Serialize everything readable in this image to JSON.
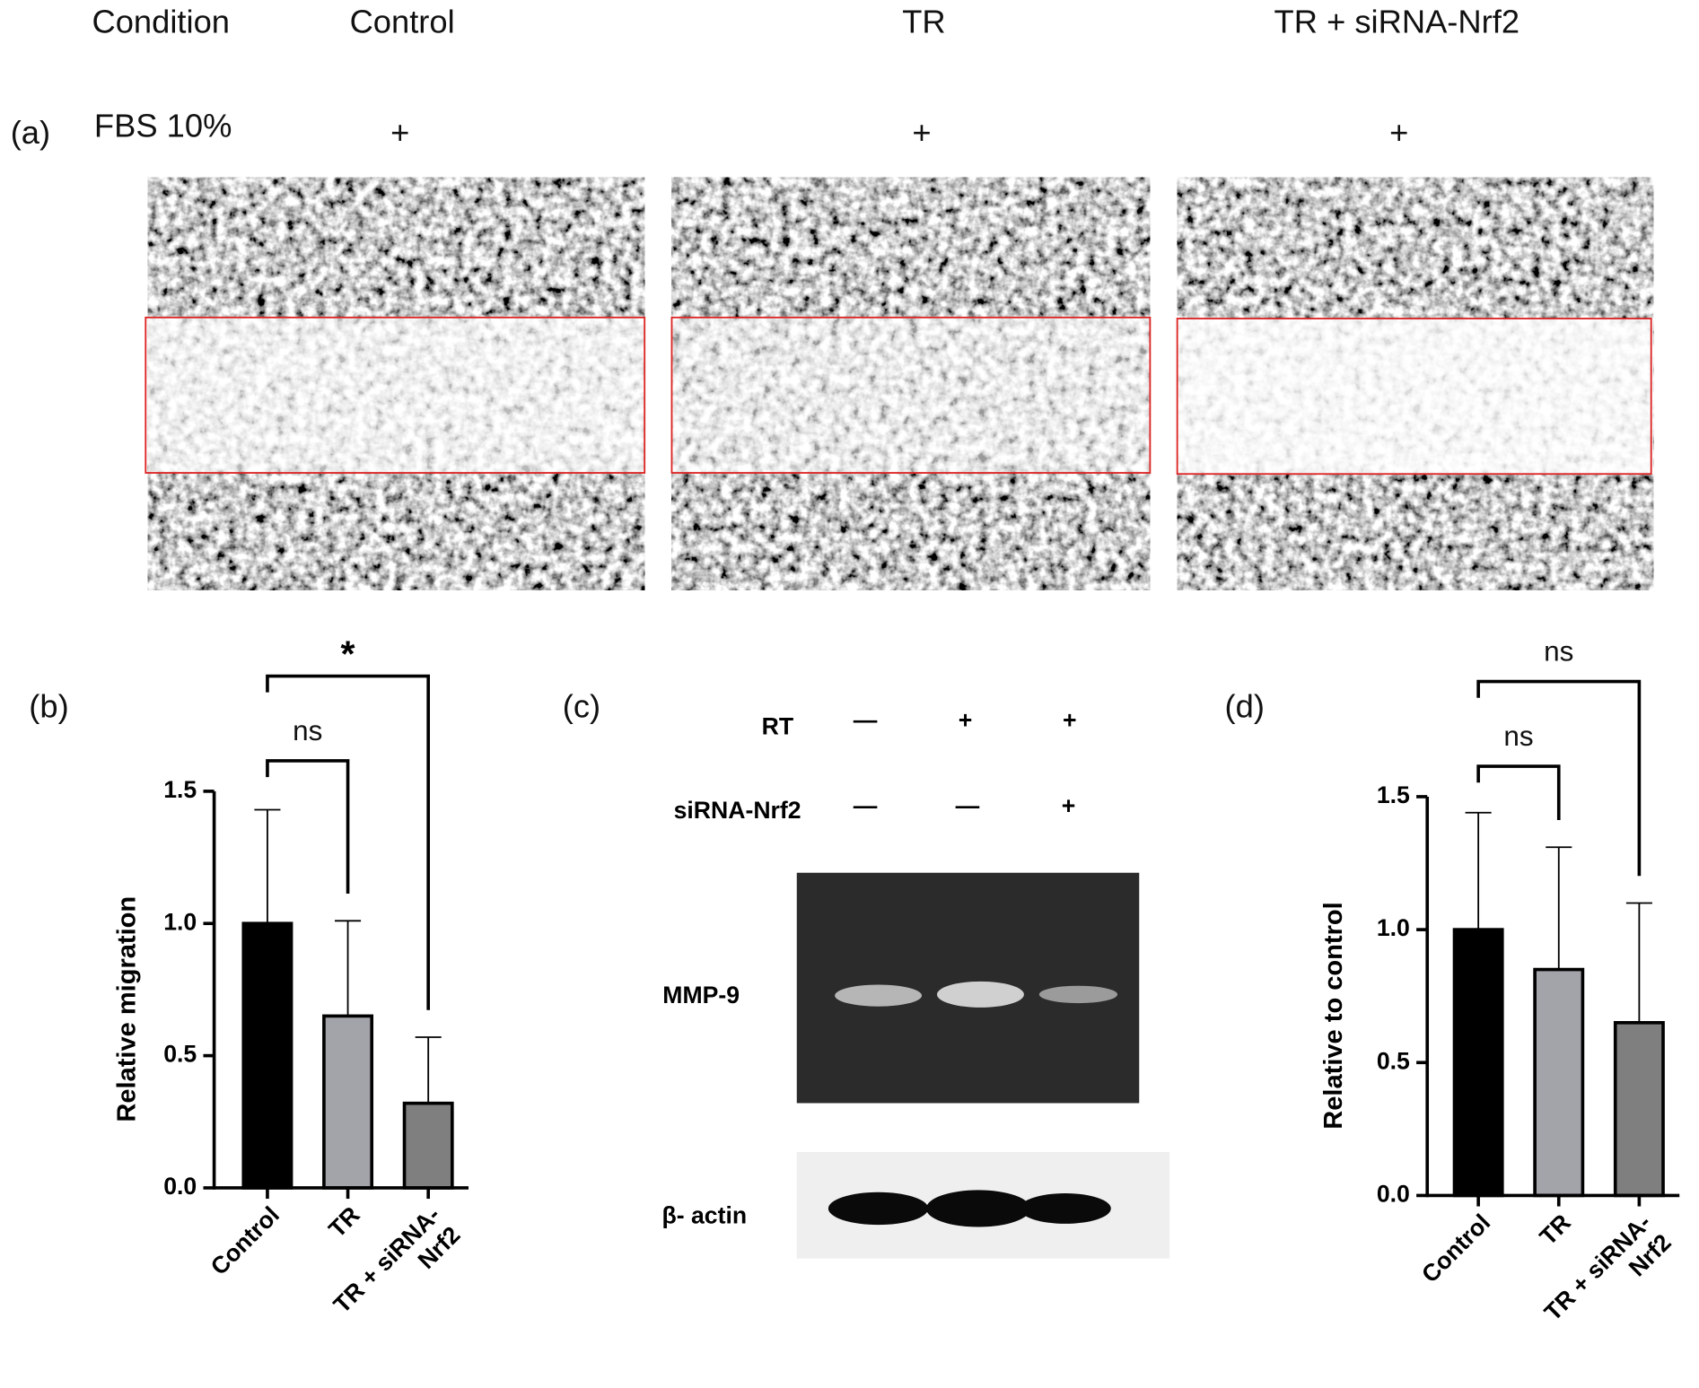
{
  "panel_a": {
    "label": "(a)",
    "header": "Condition",
    "conditions": [
      "Control",
      "TR",
      "TR + siRNA-Nrf2"
    ],
    "row_label": "FBS 10%",
    "row_values": [
      "+",
      "+",
      "+"
    ]
  },
  "panel_c": {
    "label": "(c)",
    "rows": [
      {
        "name": "RT",
        "signs": [
          "—",
          "+",
          "+"
        ]
      },
      {
        "name": "siRNA-Nrf2",
        "signs": [
          "—",
          "—",
          "+"
        ]
      }
    ],
    "bands": [
      "MMP-9",
      "β- actin"
    ]
  },
  "chart_data": [
    {
      "type": "bar",
      "panel_label": "(b)",
      "y_label": "Relative migration",
      "categories": [
        "Control",
        "TR",
        "TR + siRNA-Nrf2"
      ],
      "values": [
        1.0,
        0.65,
        0.32
      ],
      "errors": [
        0.43,
        0.36,
        0.25
      ],
      "colors": [
        "#000000",
        "#a3a3aa",
        "#7f7f7f"
      ],
      "ylim": [
        0,
        1.5
      ],
      "yticks": [
        {
          "value": 0,
          "label": "0.0"
        },
        0.5,
        {
          "value": 1,
          "label": "1.0"
        },
        1.5
      ],
      "significance": [
        {
          "from": 0,
          "to": 1,
          "label": "ns"
        },
        {
          "from": 0,
          "to": 2,
          "label": "*"
        }
      ]
    },
    {
      "type": "bar",
      "panel_label": "(d)",
      "y_label": "Relative to control",
      "categories": [
        "Control",
        "TR",
        "TR + siRNA-Nrf2"
      ],
      "values": [
        1.0,
        0.85,
        0.65
      ],
      "errors": [
        0.44,
        0.46,
        0.45
      ],
      "colors": [
        "#000000",
        "#a3a3aa",
        "#7f7f7f"
      ],
      "ylim": [
        0,
        1.5
      ],
      "yticks": [
        {
          "value": 0,
          "label": "0.0"
        },
        0.5,
        {
          "value": 1,
          "label": "1.0"
        },
        1.5
      ],
      "significance": [
        {
          "from": 0,
          "to": 1,
          "label": "ns"
        },
        {
          "from": 0,
          "to": 2,
          "label": "ns"
        }
      ]
    }
  ]
}
